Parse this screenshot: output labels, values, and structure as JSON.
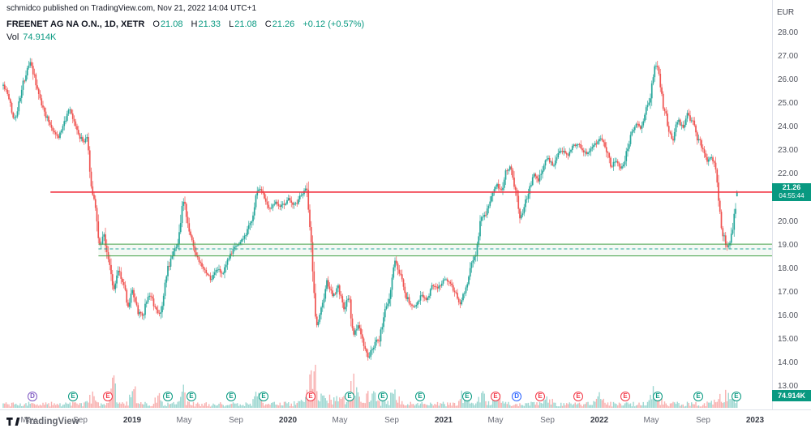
{
  "page": {
    "publish_line": "schmidco published on TradingView.com, Nov 21, 2022 14:04 UTC+1"
  },
  "header": {
    "symbol_title": "FREENET AG NA O.N., 1D, XETR",
    "ohlc": {
      "o_label": "O",
      "o": "21.08",
      "h_label": "H",
      "h": "21.33",
      "l_label": "L",
      "l": "21.08",
      "c_label": "C",
      "c": "21.26",
      "change": "+0.12 (+0.57%)"
    },
    "vol_label": "Vol",
    "vol_value": "74.914K"
  },
  "axes": {
    "currency_label": "EUR",
    "price_ticks": [
      "28.00",
      "27.00",
      "26.00",
      "25.00",
      "24.00",
      "23.00",
      "22.00",
      "21.00",
      "20.00",
      "19.00",
      "18.00",
      "17.00",
      "16.00",
      "15.00",
      "14.00",
      "13.00"
    ],
    "time_ticks": [
      {
        "label": "May",
        "t": 4,
        "year": false
      },
      {
        "label": "Sep",
        "t": 8,
        "year": false
      },
      {
        "label": "2019",
        "t": 12,
        "year": true
      },
      {
        "label": "May",
        "t": 16,
        "year": false
      },
      {
        "label": "Sep",
        "t": 20,
        "year": false
      },
      {
        "label": "2020",
        "t": 24,
        "year": true
      },
      {
        "label": "May",
        "t": 28,
        "year": false
      },
      {
        "label": "Sep",
        "t": 32,
        "year": false
      },
      {
        "label": "2021",
        "t": 36,
        "year": true
      },
      {
        "label": "May",
        "t": 40,
        "year": false
      },
      {
        "label": "Sep",
        "t": 44,
        "year": false
      },
      {
        "label": "2022",
        "t": 48,
        "year": true
      },
      {
        "label": "May",
        "t": 52,
        "year": false
      },
      {
        "label": "Sep",
        "t": 56,
        "year": false
      },
      {
        "label": "2023",
        "t": 60,
        "year": true
      }
    ]
  },
  "colors": {
    "up": "#26a69a",
    "down": "#ef5350",
    "resistance_line": "#f23645",
    "support_solid": "#43a047",
    "support_dashed": "#26a69a",
    "badge_bg": "#089981"
  },
  "overlays": {
    "red_line": {
      "price": 21.26,
      "start_t": 5.7
    },
    "green_lines": [
      {
        "price": 19.05,
        "style": "solid"
      },
      {
        "price": 18.85,
        "style": "dashed"
      },
      {
        "price": 18.55,
        "style": "solid"
      }
    ],
    "green_start_t": 9.4
  },
  "badges": {
    "price": {
      "line1": "21.26",
      "line2": "04:55:44"
    },
    "volume": {
      "text": "74.914K"
    }
  },
  "events": [
    {
      "t": 4.31,
      "letter": "D",
      "color": "#7e57c2"
    },
    {
      "t": 7.44,
      "letter": "E",
      "color": "#089981"
    },
    {
      "t": 10.13,
      "letter": "E",
      "color": "#f23645"
    },
    {
      "t": 14.75,
      "letter": "E",
      "color": "#089981"
    },
    {
      "t": 16.56,
      "letter": "E",
      "color": "#089981"
    },
    {
      "t": 19.63,
      "letter": "E",
      "color": "#089981"
    },
    {
      "t": 22.13,
      "letter": "E",
      "color": "#089981"
    },
    {
      "t": 25.75,
      "letter": "E",
      "color": "#f23645"
    },
    {
      "t": 28.75,
      "letter": "E",
      "color": "#089981"
    },
    {
      "t": 31.31,
      "letter": "E",
      "color": "#089981"
    },
    {
      "t": 34.19,
      "letter": "E",
      "color": "#089981"
    },
    {
      "t": 37.81,
      "letter": "E",
      "color": "#089981"
    },
    {
      "t": 40.0,
      "letter": "E",
      "color": "#f23645"
    },
    {
      "t": 41.63,
      "letter": "D",
      "color": "#2962ff"
    },
    {
      "t": 43.44,
      "letter": "E",
      "color": "#f23645"
    },
    {
      "t": 46.38,
      "letter": "E",
      "color": "#f23645"
    },
    {
      "t": 50.0,
      "letter": "E",
      "color": "#f23645"
    },
    {
      "t": 52.5,
      "letter": "E",
      "color": "#089981"
    },
    {
      "t": 55.63,
      "letter": "E",
      "color": "#089981"
    },
    {
      "t": 58.56,
      "letter": "E",
      "color": "#089981"
    }
  ],
  "footer": {
    "brand": "TradingView"
  },
  "chart_data": {
    "type": "candlestick",
    "title": "FREENET AG NA O.N., 1D, XETR",
    "ylabel": "EUR",
    "ylim": [
      12.8,
      28.6
    ],
    "x_unit": "months since 2018-01 (decimal)",
    "x_range": [
      2.1,
      58.7
    ],
    "grid": false,
    "last_candle": {
      "o": 21.08,
      "h": 21.33,
      "l": 21.08,
      "c": 21.26,
      "change": 0.12,
      "change_pct": 0.57,
      "volume": "74.914K"
    },
    "levels": {
      "resistance": 21.26,
      "support_zone": [
        18.55,
        19.05
      ],
      "support_dashed": 18.85
    },
    "path": [
      [
        2.13,
        25.8
      ],
      [
        2.88,
        24.3
      ],
      [
        3.69,
        26.0
      ],
      [
        4.19,
        26.8
      ],
      [
        4.81,
        25.2
      ],
      [
        5.56,
        24.3
      ],
      [
        6.31,
        23.6
      ],
      [
        7.13,
        24.7
      ],
      [
        7.75,
        23.8
      ],
      [
        8.25,
        23.4
      ],
      [
        8.56,
        23.6
      ],
      [
        8.81,
        21.5
      ],
      [
        9.19,
        20.8
      ],
      [
        9.44,
        18.9
      ],
      [
        9.81,
        19.6
      ],
      [
        10.25,
        18.1
      ],
      [
        10.56,
        17.1
      ],
      [
        10.94,
        18.0
      ],
      [
        11.31,
        17.4
      ],
      [
        11.69,
        16.4
      ],
      [
        12.0,
        17.2
      ],
      [
        12.44,
        16.2
      ],
      [
        12.81,
        16.0
      ],
      [
        13.25,
        17.0
      ],
      [
        13.69,
        16.3
      ],
      [
        14.13,
        16.1
      ],
      [
        14.63,
        17.6
      ],
      [
        15.13,
        18.9
      ],
      [
        15.56,
        19.2
      ],
      [
        15.88,
        21.0
      ],
      [
        16.19,
        20.2
      ],
      [
        16.69,
        18.9
      ],
      [
        17.13,
        18.2
      ],
      [
        17.56,
        17.8
      ],
      [
        18.06,
        17.5
      ],
      [
        18.56,
        18.0
      ],
      [
        19.0,
        17.7
      ],
      [
        19.5,
        18.4
      ],
      [
        19.94,
        18.9
      ],
      [
        20.44,
        19.2
      ],
      [
        20.88,
        19.6
      ],
      [
        21.31,
        20.3
      ],
      [
        21.69,
        21.4
      ],
      [
        22.13,
        21.2
      ],
      [
        22.56,
        20.6
      ],
      [
        23.06,
        20.9
      ],
      [
        23.56,
        20.7
      ],
      [
        24.06,
        21.0
      ],
      [
        24.56,
        20.7
      ],
      [
        25.06,
        21.2
      ],
      [
        25.44,
        21.5
      ],
      [
        25.81,
        18.8
      ],
      [
        26.19,
        15.5
      ],
      [
        26.56,
        16.2
      ],
      [
        27.0,
        17.4
      ],
      [
        27.44,
        16.8
      ],
      [
        27.88,
        17.2
      ],
      [
        28.31,
        16.2
      ],
      [
        28.69,
        16.8
      ],
      [
        29.06,
        15.1
      ],
      [
        29.44,
        15.7
      ],
      [
        29.81,
        14.8
      ],
      [
        30.25,
        14.2
      ],
      [
        30.69,
        14.9
      ],
      [
        31.06,
        15.0
      ],
      [
        31.44,
        16.0
      ],
      [
        31.81,
        16.9
      ],
      [
        32.19,
        18.5
      ],
      [
        32.56,
        17.8
      ],
      [
        32.94,
        17.3
      ],
      [
        33.38,
        16.5
      ],
      [
        33.81,
        16.3
      ],
      [
        34.25,
        17.0
      ],
      [
        34.69,
        16.7
      ],
      [
        35.13,
        17.3
      ],
      [
        35.56,
        17.2
      ],
      [
        36.0,
        17.5
      ],
      [
        36.44,
        17.4
      ],
      [
        36.88,
        17.0
      ],
      [
        37.31,
        16.6
      ],
      [
        37.75,
        17.4
      ],
      [
        38.19,
        18.4
      ],
      [
        38.56,
        18.8
      ],
      [
        38.94,
        20.3
      ],
      [
        39.31,
        20.4
      ],
      [
        39.69,
        21.0
      ],
      [
        40.06,
        21.6
      ],
      [
        40.44,
        21.3
      ],
      [
        40.81,
        22.2
      ],
      [
        41.19,
        22.4
      ],
      [
        41.56,
        21.3
      ],
      [
        41.88,
        20.3
      ],
      [
        42.19,
        20.6
      ],
      [
        42.56,
        21.5
      ],
      [
        42.94,
        22.0
      ],
      [
        43.31,
        21.8
      ],
      [
        43.69,
        22.4
      ],
      [
        44.06,
        22.7
      ],
      [
        44.44,
        22.4
      ],
      [
        44.81,
        22.9
      ],
      [
        45.19,
        23.0
      ],
      [
        45.56,
        22.7
      ],
      [
        45.94,
        23.1
      ],
      [
        46.31,
        23.4
      ],
      [
        46.69,
        23.1
      ],
      [
        47.06,
        22.7
      ],
      [
        47.44,
        23.2
      ],
      [
        47.81,
        23.3
      ],
      [
        48.19,
        23.5
      ],
      [
        48.56,
        23.0
      ],
      [
        48.94,
        22.3
      ],
      [
        49.31,
        22.6
      ],
      [
        49.69,
        22.2
      ],
      [
        50.06,
        23.0
      ],
      [
        50.44,
        23.8
      ],
      [
        50.81,
        24.2
      ],
      [
        51.19,
        24.0
      ],
      [
        51.56,
        24.8
      ],
      [
        51.94,
        25.2
      ],
      [
        52.31,
        26.8
      ],
      [
        52.63,
        26.2
      ],
      [
        52.94,
        24.9
      ],
      [
        53.31,
        23.9
      ],
      [
        53.69,
        23.5
      ],
      [
        54.06,
        24.3
      ],
      [
        54.44,
        24.0
      ],
      [
        54.81,
        24.6
      ],
      [
        55.19,
        24.2
      ],
      [
        55.56,
        23.6
      ],
      [
        55.94,
        23.0
      ],
      [
        56.31,
        22.5
      ],
      [
        56.69,
        22.7
      ],
      [
        57.06,
        21.8
      ],
      [
        57.44,
        19.8
      ],
      [
        57.81,
        19.0
      ],
      [
        58.19,
        19.5
      ],
      [
        58.44,
        20.5
      ],
      [
        58.69,
        21.26
      ]
    ],
    "volume_spikes": [
      {
        "t": 8.81,
        "mult": 2.5,
        "sigma": 0.3
      },
      {
        "t": 10.56,
        "mult": 5,
        "sigma": 0.25
      },
      {
        "t": 12.1,
        "mult": 4,
        "sigma": 0.3
      },
      {
        "t": 14.0,
        "mult": 2.5,
        "sigma": 0.3
      },
      {
        "t": 15.9,
        "mult": 3,
        "sigma": 0.25
      },
      {
        "t": 21.7,
        "mult": 2.5,
        "sigma": 0.3
      },
      {
        "t": 26.0,
        "mult": 6,
        "sigma": 0.5
      },
      {
        "t": 27.5,
        "mult": 1.2,
        "sigma": 2.0
      },
      {
        "t": 29.1,
        "mult": 4,
        "sigma": 0.4
      },
      {
        "t": 30.3,
        "mult": 3.5,
        "sigma": 0.5
      },
      {
        "t": 32.2,
        "mult": 2.5,
        "sigma": 0.4
      },
      {
        "t": 37.5,
        "mult": 2,
        "sigma": 0.4
      },
      {
        "t": 38.9,
        "mult": 3,
        "sigma": 0.3
      },
      {
        "t": 40.1,
        "mult": 3.5,
        "sigma": 0.3
      },
      {
        "t": 44.1,
        "mult": 2,
        "sigma": 0.3
      },
      {
        "t": 48.0,
        "mult": 2,
        "sigma": 0.4
      },
      {
        "t": 52.3,
        "mult": 3,
        "sigma": 0.4
      },
      {
        "t": 57.5,
        "mult": 2.5,
        "sigma": 0.6
      },
      {
        "t": 58.5,
        "mult": 2,
        "sigma": 0.3
      }
    ]
  }
}
